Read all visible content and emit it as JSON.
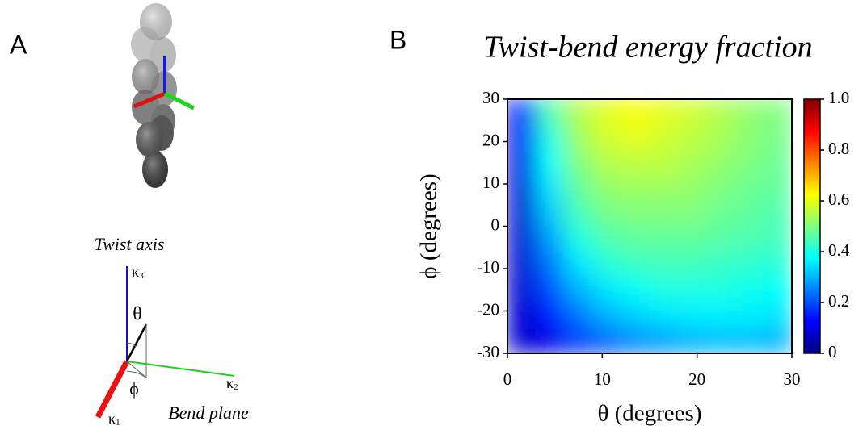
{
  "panels": {
    "a_label": "A",
    "b_label": "B",
    "twist_axis": "Twist axis",
    "bend_plane": "Bend plane",
    "theta": "θ",
    "phi": "ϕ",
    "kappa": [
      {
        "symbol": "κ",
        "sub": "1"
      },
      {
        "symbol": "κ",
        "sub": "2"
      },
      {
        "symbol": "κ",
        "sub": "3"
      }
    ]
  },
  "chart_data": {
    "type": "heatmap",
    "title": "Twist-bend energy fraction",
    "xlabel": "θ (degrees)",
    "ylabel": "ϕ (degrees)",
    "x": [
      1.5,
      4.5,
      7.5,
      10.5,
      13.5,
      16.5,
      19.5,
      22.5,
      25.5,
      28.5
    ],
    "y": [
      -27,
      -21,
      -15,
      -9,
      -3,
      3,
      9,
      15,
      21,
      27
    ],
    "values": [
      [
        0.08,
        0.1,
        0.18,
        0.22,
        0.26,
        0.28,
        0.3,
        0.31,
        0.31,
        0.3
      ],
      [
        0.08,
        0.15,
        0.24,
        0.3,
        0.33,
        0.35,
        0.36,
        0.36,
        0.36,
        0.35
      ],
      [
        0.08,
        0.2,
        0.3,
        0.35,
        0.38,
        0.4,
        0.4,
        0.4,
        0.39,
        0.38
      ],
      [
        0.08,
        0.24,
        0.35,
        0.41,
        0.43,
        0.44,
        0.44,
        0.43,
        0.42,
        0.41
      ],
      [
        0.08,
        0.28,
        0.4,
        0.45,
        0.47,
        0.47,
        0.47,
        0.46,
        0.45,
        0.44
      ],
      [
        0.08,
        0.32,
        0.44,
        0.49,
        0.5,
        0.5,
        0.5,
        0.48,
        0.47,
        0.45
      ],
      [
        0.09,
        0.35,
        0.47,
        0.52,
        0.53,
        0.53,
        0.52,
        0.5,
        0.48,
        0.47
      ],
      [
        0.1,
        0.38,
        0.5,
        0.55,
        0.56,
        0.56,
        0.54,
        0.52,
        0.5,
        0.48
      ],
      [
        0.12,
        0.4,
        0.53,
        0.58,
        0.6,
        0.58,
        0.56,
        0.54,
        0.51,
        0.49
      ],
      [
        0.14,
        0.45,
        0.55,
        0.6,
        0.62,
        0.6,
        0.58,
        0.55,
        0.52,
        0.5
      ]
    ],
    "xlim": [
      0,
      30
    ],
    "ylim": [
      -30,
      30
    ],
    "xticks": [
      0,
      10,
      20,
      30
    ],
    "yticks": [
      -30,
      -20,
      -10,
      0,
      10,
      20,
      30
    ],
    "colormap": "jet",
    "clim": [
      0,
      1
    ],
    "cticks": [
      0,
      0.2,
      0.4,
      0.6,
      0.8,
      {
        "value": 1,
        "label": "1.0"
      }
    ]
  }
}
